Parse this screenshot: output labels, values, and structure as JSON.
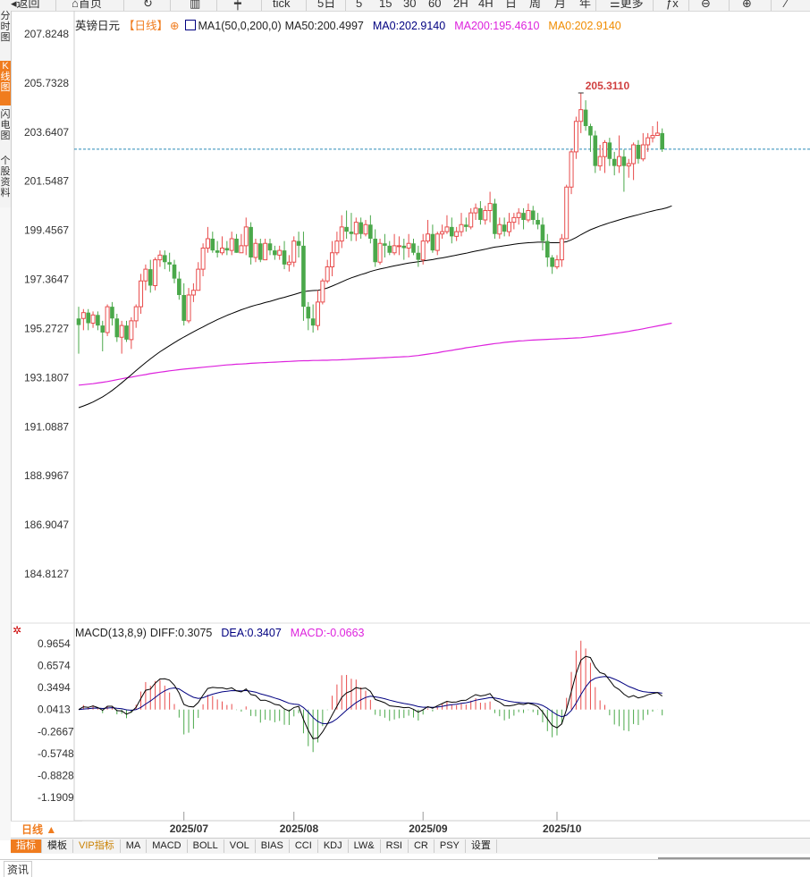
{
  "toolbar": {
    "items": [
      "返回",
      "首页",
      "",
      "",
      "",
      "tick",
      "5日",
      "5",
      "15",
      "30",
      "60",
      "2H",
      "4H",
      "日",
      "周",
      "月",
      "年",
      "更多",
      "",
      "",
      ""
    ]
  },
  "left_tabs": [
    {
      "label": "分时图",
      "active": false
    },
    {
      "label": "K线图",
      "active": true
    },
    {
      "label": "闪电图",
      "active": false
    },
    {
      "label": "个股资料",
      "active": false
    }
  ],
  "legend": {
    "symbol": "英镑日元",
    "period_tag": "【日线】",
    "ma_label": "MA1(50,0,200,0)",
    "ma50": "MA50:200.4997",
    "ma0a": "MA0:202.9140",
    "ma200": "MA200:195.4610",
    "ma0b": "MA0:202.9140"
  },
  "macd_legend": {
    "title": "MACD(13,8,9)",
    "diff": "DIFF:0.3075",
    "dea": "DEA:0.3407",
    "macd": "MACD:-0.0663"
  },
  "colors": {
    "up": "#e84c4c",
    "down": "#4aa84a",
    "ma50": "#000000",
    "ma200": "#dd22dd",
    "dea": "#000080",
    "macd": "#dd22dd",
    "accent": "#f07c1e",
    "last_price_line": "#2a8ab8"
  },
  "chart_data": {
    "type": "candlestick",
    "y_ticks": [
      "207.8248",
      "205.7328",
      "203.6407",
      "201.5487",
      "199.4567",
      "197.3647",
      "195.2727",
      "193.1807",
      "191.0887",
      "188.9967",
      "186.9047",
      "184.8127"
    ],
    "ylim": [
      184.8127,
      207.8248
    ],
    "x_ticks": [
      "2025/07",
      "2025/08",
      "2025/09",
      "2025/10"
    ],
    "high_label": "205.3110",
    "last_price": 202.914,
    "candles": [
      [
        195.7,
        195.42,
        196.2,
        194.2
      ],
      [
        195.7,
        195.95,
        196.1,
        195.2
      ],
      [
        195.95,
        195.5,
        196.1,
        195.2
      ],
      [
        195.5,
        195.85,
        196.0,
        195.3
      ],
      [
        195.85,
        195.4,
        196.0,
        195.2
      ],
      [
        195.4,
        195.1,
        195.6,
        194.3
      ],
      [
        195.1,
        196.2,
        196.3,
        194.95
      ],
      [
        196.2,
        195.7,
        196.4,
        195.4
      ],
      [
        195.7,
        194.9,
        195.9,
        194.7
      ],
      [
        194.9,
        195.4,
        195.6,
        194.2
      ],
      [
        195.4,
        194.8,
        195.6,
        194.7
      ],
      [
        194.8,
        195.6,
        195.75,
        194.4
      ],
      [
        195.6,
        196.2,
        196.3,
        195.3
      ],
      [
        196.2,
        197.3,
        197.6,
        195.9
      ],
      [
        197.3,
        197.8,
        198.0,
        196.9
      ],
      [
        197.8,
        197.1,
        198.2,
        196.8
      ],
      [
        197.1,
        198.2,
        198.3,
        196.9
      ],
      [
        198.2,
        198.4,
        198.6,
        197.9
      ],
      [
        198.4,
        198.1,
        198.6,
        197.8
      ],
      [
        198.1,
        198.0,
        198.5,
        197.7
      ],
      [
        198.0,
        197.4,
        198.2,
        197.2
      ],
      [
        197.4,
        196.7,
        197.7,
        196.5
      ],
      [
        196.7,
        195.6,
        197.2,
        195.4
      ],
      [
        195.6,
        196.7,
        197.0,
        195.5
      ],
      [
        196.7,
        196.9,
        197.2,
        196.4
      ],
      [
        196.9,
        197.8,
        198.1,
        196.9
      ],
      [
        197.8,
        198.7,
        198.9,
        197.5
      ],
      [
        198.7,
        199.1,
        199.6,
        198.5
      ],
      [
        199.1,
        198.6,
        199.4,
        198.5
      ],
      [
        198.6,
        198.5,
        199.0,
        198.3
      ],
      [
        198.5,
        198.7,
        199.2,
        198.4
      ],
      [
        198.7,
        198.6,
        199.0,
        198.4
      ],
      [
        198.6,
        199.1,
        199.4,
        198.4
      ],
      [
        199.1,
        198.5,
        199.3,
        198.5
      ],
      [
        198.5,
        198.8,
        199.3,
        198.6
      ],
      [
        198.8,
        199.6,
        200.0,
        198.4
      ],
      [
        199.6,
        198.3,
        199.8,
        198.0
      ],
      [
        198.3,
        198.9,
        199.1,
        198.1
      ],
      [
        198.9,
        198.2,
        199.1,
        198.1
      ],
      [
        198.2,
        198.9,
        199.1,
        198.4
      ],
      [
        198.9,
        198.6,
        199.1,
        198.4
      ],
      [
        198.6,
        198.4,
        198.8,
        198.2
      ],
      [
        198.4,
        198.6,
        198.8,
        198.2
      ],
      [
        198.6,
        198.0,
        199.0,
        197.8
      ],
      [
        198.0,
        198.1,
        198.4,
        197.7
      ],
      [
        198.1,
        199.0,
        199.2,
        197.9
      ],
      [
        199.0,
        198.8,
        199.4,
        198.3
      ],
      [
        198.8,
        196.2,
        199.4,
        195.6
      ],
      [
        196.2,
        195.7,
        196.4,
        195.2
      ],
      [
        195.7,
        195.4,
        196.3,
        195.1
      ],
      [
        195.4,
        196.4,
        196.9,
        195.2
      ],
      [
        196.4,
        197.3,
        197.4,
        196.3
      ],
      [
        197.3,
        197.9,
        198.2,
        197.2
      ],
      [
        197.9,
        198.5,
        199.0,
        197.5
      ],
      [
        198.5,
        199.0,
        199.4,
        198.4
      ],
      [
        199.0,
        199.6,
        200.1,
        198.7
      ],
      [
        199.6,
        199.4,
        200.3,
        199.1
      ],
      [
        199.4,
        199.3,
        200.2,
        199.0
      ],
      [
        199.3,
        199.8,
        200.0,
        199.0
      ],
      [
        199.8,
        199.3,
        200.0,
        199.1
      ],
      [
        199.3,
        199.7,
        199.9,
        199.2
      ],
      [
        199.7,
        199.1,
        200.1,
        198.9
      ],
      [
        199.1,
        198.1,
        199.5,
        197.9
      ],
      [
        198.1,
        198.9,
        199.1,
        198.0
      ],
      [
        198.9,
        198.8,
        199.3,
        198.3
      ],
      [
        198.8,
        198.5,
        199.0,
        198.4
      ],
      [
        198.5,
        198.8,
        199.3,
        198.4
      ],
      [
        198.8,
        198.8,
        199.2,
        198.4
      ],
      [
        198.8,
        198.7,
        199.1,
        198.2
      ],
      [
        198.7,
        198.9,
        199.3,
        198.3
      ],
      [
        198.9,
        198.5,
        199.1,
        198.4
      ],
      [
        198.5,
        198.2,
        198.8,
        197.9
      ],
      [
        198.2,
        199.0,
        199.3,
        198.0
      ],
      [
        199.0,
        199.3,
        199.9,
        198.9
      ],
      [
        199.3,
        198.6,
        199.7,
        198.5
      ],
      [
        198.6,
        199.3,
        199.4,
        198.4
      ],
      [
        199.3,
        199.4,
        199.7,
        199.1
      ],
      [
        199.4,
        199.6,
        200.1,
        199.3
      ],
      [
        199.6,
        199.2,
        200.0,
        198.9
      ],
      [
        199.2,
        199.4,
        199.6,
        199.0
      ],
      [
        199.4,
        199.7,
        200.2,
        199.2
      ],
      [
        199.7,
        199.6,
        200.0,
        199.4
      ],
      [
        199.6,
        200.2,
        200.4,
        199.5
      ],
      [
        200.2,
        200.4,
        200.6,
        199.9
      ],
      [
        200.4,
        199.9,
        200.7,
        199.7
      ],
      [
        199.9,
        200.3,
        200.5,
        199.7
      ],
      [
        200.3,
        200.6,
        201.1,
        199.8
      ],
      [
        200.6,
        199.3,
        200.8,
        199.1
      ],
      [
        199.3,
        199.7,
        200.0,
        199.1
      ],
      [
        199.7,
        199.4,
        200.0,
        199.2
      ],
      [
        199.4,
        199.8,
        200.2,
        199.2
      ],
      [
        199.8,
        200.0,
        200.2,
        199.5
      ],
      [
        200.0,
        200.2,
        200.4,
        199.7
      ],
      [
        200.2,
        199.9,
        200.4,
        199.5
      ],
      [
        199.9,
        200.3,
        200.6,
        199.8
      ],
      [
        200.3,
        199.9,
        200.5,
        199.7
      ],
      [
        199.9,
        199.7,
        200.2,
        199.5
      ],
      [
        199.7,
        199.0,
        200.0,
        198.6
      ],
      [
        199.0,
        198.3,
        199.3,
        197.9
      ],
      [
        198.3,
        197.9,
        198.4,
        197.6
      ],
      [
        197.9,
        198.2,
        198.4,
        197.8
      ],
      [
        198.2,
        199.1,
        199.3,
        197.9
      ],
      [
        199.1,
        201.3,
        201.4,
        200.3
      ],
      [
        201.3,
        202.8,
        202.9,
        201.0
      ],
      [
        202.8,
        204.1,
        204.3,
        202.5
      ],
      [
        204.1,
        204.6,
        205.311,
        203.6
      ],
      [
        204.6,
        203.9,
        205.0,
        203.7
      ],
      [
        203.9,
        203.5,
        204.0,
        202.8
      ],
      [
        203.5,
        202.2,
        203.7,
        201.9
      ],
      [
        202.2,
        202.6,
        203.1,
        202.0
      ],
      [
        202.6,
        203.2,
        203.3,
        201.9
      ],
      [
        203.2,
        202.5,
        203.4,
        202.2
      ],
      [
        202.5,
        202.2,
        202.8,
        201.8
      ],
      [
        202.2,
        202.6,
        203.5,
        201.9
      ],
      [
        202.6,
        202.2,
        202.9,
        201.1
      ],
      [
        202.2,
        202.3,
        202.5,
        201.7
      ],
      [
        202.3,
        203.1,
        203.2,
        201.6
      ],
      [
        203.1,
        202.5,
        203.3,
        202.3
      ],
      [
        202.5,
        203.1,
        203.6,
        202.4
      ],
      [
        203.1,
        203.4,
        203.6,
        202.8
      ],
      [
        203.4,
        203.5,
        203.9,
        203.2
      ],
      [
        203.5,
        203.6,
        204.1,
        203.5
      ],
      [
        203.6,
        202.91,
        203.8,
        202.8
      ]
    ],
    "ma50": [
      191.9,
      191.97,
      192.05,
      192.14,
      192.25,
      192.36,
      192.49,
      192.63,
      192.79,
      192.96,
      193.13,
      193.3,
      193.48,
      193.65,
      193.82,
      193.98,
      194.13,
      194.28,
      194.41,
      194.54,
      194.67,
      194.79,
      194.91,
      195.02,
      195.13,
      195.24,
      195.34,
      195.45,
      195.55,
      195.65,
      195.74,
      195.83,
      195.91,
      195.99,
      196.07,
      196.14,
      196.21,
      196.27,
      196.32,
      196.38,
      196.43,
      196.49,
      196.55,
      196.6,
      196.66,
      196.72,
      196.78,
      196.84,
      196.87,
      196.89,
      196.9,
      196.94,
      197.0,
      197.08,
      197.17,
      197.26,
      197.35,
      197.43,
      197.5,
      197.57,
      197.63,
      197.7,
      197.76,
      197.81,
      197.85,
      197.9,
      197.94,
      197.98,
      198.02,
      198.06,
      198.09,
      198.12,
      198.15,
      198.18,
      198.21,
      198.25,
      198.28,
      198.32,
      198.36,
      198.4,
      198.44,
      198.48,
      198.53,
      198.57,
      198.61,
      198.65,
      198.7,
      198.74,
      198.77,
      198.8,
      198.83,
      198.86,
      198.89,
      198.91,
      198.93,
      198.94,
      198.95,
      198.95,
      198.94,
      198.93,
      198.93,
      198.94,
      198.97,
      199.05,
      199.15,
      199.27,
      199.38,
      199.48,
      199.56,
      199.64,
      199.71,
      199.78,
      199.84,
      199.9,
      199.96,
      200.02,
      200.07,
      200.12,
      200.18,
      200.23,
      200.28,
      200.33,
      200.37,
      200.42,
      200.5
    ],
    "ma200": [
      192.86,
      192.88,
      192.9,
      192.92,
      192.95,
      192.98,
      193.01,
      193.05,
      193.09,
      193.13,
      193.17,
      193.2,
      193.24,
      193.28,
      193.31,
      193.35,
      193.38,
      193.41,
      193.44,
      193.47,
      193.49,
      193.52,
      193.54,
      193.56,
      193.58,
      193.6,
      193.62,
      193.64,
      193.66,
      193.68,
      193.7,
      193.72,
      193.73,
      193.75,
      193.76,
      193.77,
      193.79,
      193.8,
      193.81,
      193.82,
      193.83,
      193.84,
      193.85,
      193.86,
      193.87,
      193.88,
      193.89,
      193.9,
      193.9,
      193.91,
      193.91,
      193.92,
      193.92,
      193.93,
      193.93,
      193.94,
      193.95,
      193.96,
      193.97,
      193.98,
      193.99,
      194.0,
      194.01,
      194.02,
      194.03,
      194.04,
      194.05,
      194.06,
      194.07,
      194.08,
      194.1,
      194.12,
      194.15,
      194.18,
      194.21,
      194.24,
      194.28,
      194.31,
      194.34,
      194.38,
      194.41,
      194.45,
      194.48,
      194.51,
      194.54,
      194.57,
      194.6,
      194.63,
      194.65,
      194.68,
      194.7,
      194.72,
      194.74,
      194.75,
      194.77,
      194.78,
      194.79,
      194.8,
      194.81,
      194.82,
      194.83,
      194.84,
      194.85,
      194.86,
      194.87,
      194.88,
      194.9,
      194.92,
      194.95,
      194.97,
      195.0,
      195.03,
      195.06,
      195.09,
      195.12,
      195.15,
      195.19,
      195.22,
      195.26,
      195.3,
      195.34,
      195.38,
      195.42,
      195.46,
      195.5
    ]
  },
  "macd_chart": {
    "y_ticks": [
      "0.9654",
      "0.6574",
      "0.3494",
      "0.0413",
      "-0.2667",
      "-0.5748",
      "-0.8828",
      "-1.1909"
    ],
    "ylim": [
      -1.1909,
      0.9654
    ]
  },
  "period_label": "日线 ▲",
  "indicator_tabs": [
    {
      "label": "指标",
      "active": true,
      "vip": false
    },
    {
      "label": "模板",
      "active": false,
      "vip": false
    },
    {
      "label": "VIP指标",
      "active": false,
      "vip": true
    },
    {
      "label": "MA",
      "active": false,
      "vip": false
    },
    {
      "label": "MACD",
      "active": false,
      "vip": false
    },
    {
      "label": "BOLL",
      "active": false,
      "vip": false
    },
    {
      "label": "VOL",
      "active": false,
      "vip": false
    },
    {
      "label": "BIAS",
      "active": false,
      "vip": false
    },
    {
      "label": "CCI",
      "active": false,
      "vip": false
    },
    {
      "label": "KDJ",
      "active": false,
      "vip": false
    },
    {
      "label": "LW&",
      "active": false,
      "vip": false
    },
    {
      "label": "RSI",
      "active": false,
      "vip": false
    },
    {
      "label": "CR",
      "active": false,
      "vip": false
    },
    {
      "label": "PSY",
      "active": false,
      "vip": false
    },
    {
      "label": "设置",
      "active": false,
      "vip": false
    }
  ],
  "news_tab": "资讯"
}
